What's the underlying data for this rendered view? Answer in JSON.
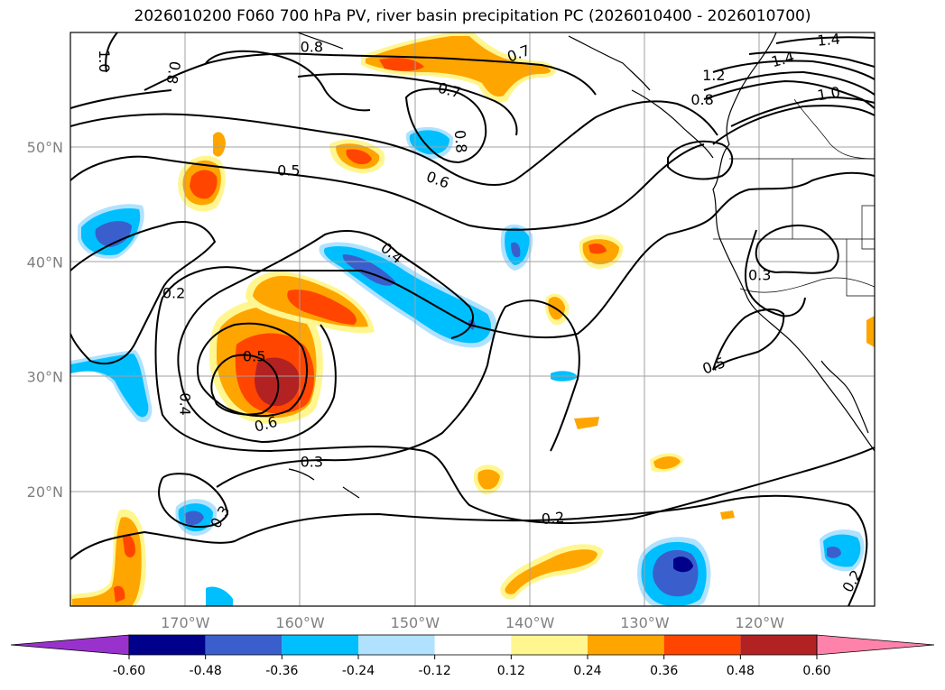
{
  "title": "2026010200 F060 700 hPa PV, river basin precipitation PC (2026010400 - 2026010700)",
  "axes": {
    "lat_labels": [
      {
        "text": "50°N",
        "lat": 50
      },
      {
        "text": "40°N",
        "lat": 40
      },
      {
        "text": "30°N",
        "lat": 30
      },
      {
        "text": "20°N",
        "lat": 20
      }
    ],
    "lon_labels": [
      {
        "text": "170°W",
        "lon": -170
      },
      {
        "text": "160°W",
        "lon": -160
      },
      {
        "text": "150°W",
        "lon": -150
      },
      {
        "text": "140°W",
        "lon": -140
      },
      {
        "text": "130°W",
        "lon": -130
      },
      {
        "text": "120°W",
        "lon": -120
      }
    ],
    "lon_range": [
      -180,
      -110
    ],
    "lat_range": [
      10,
      60
    ]
  },
  "contour_labels": [
    {
      "text": "1.0",
      "lon": -177,
      "lat": 57.5,
      "rot": 90
    },
    {
      "text": "0.8",
      "lon": -171,
      "lat": 56.5,
      "rot": 100
    },
    {
      "text": "0.8",
      "lon": -159,
      "lat": 58.8,
      "rot": 0
    },
    {
      "text": "0.7",
      "lon": -141,
      "lat": 58.2,
      "rot": -20
    },
    {
      "text": "0.7",
      "lon": -147,
      "lat": 55.0,
      "rot": 15
    },
    {
      "text": "0.8",
      "lon": -146,
      "lat": 50.5,
      "rot": 85
    },
    {
      "text": "0.6",
      "lon": -148,
      "lat": 47.2,
      "rot": 20
    },
    {
      "text": "0.5",
      "lon": -161,
      "lat": 48.0,
      "rot": 0
    },
    {
      "text": "0.4",
      "lon": -152,
      "lat": 40.8,
      "rot": 40
    },
    {
      "text": "0.2",
      "lon": -171,
      "lat": 37.3,
      "rot": 0
    },
    {
      "text": "0.5",
      "lon": -164,
      "lat": 31.8,
      "rot": 0
    },
    {
      "text": "0.4",
      "lon": -170,
      "lat": 27.6,
      "rot": 90
    },
    {
      "text": "0.6",
      "lon": -163,
      "lat": 25.9,
      "rot": -15
    },
    {
      "text": "0.3",
      "lon": -159,
      "lat": 22.6,
      "rot": 0
    },
    {
      "text": "0.3",
      "lon": -167,
      "lat": 17.8,
      "rot": -60
    },
    {
      "text": "0.2",
      "lon": -138,
      "lat": 17.7,
      "rot": -5
    },
    {
      "text": "0.2",
      "lon": -112,
      "lat": 12.2,
      "rot": -60
    },
    {
      "text": "0.3",
      "lon": -120,
      "lat": 38.9,
      "rot": 0
    },
    {
      "text": "0.5",
      "lon": -124,
      "lat": 31.0,
      "rot": -20
    },
    {
      "text": "0.8",
      "lon": -125,
      "lat": 54.2,
      "rot": 0
    },
    {
      "text": "1.2",
      "lon": -124,
      "lat": 56.3,
      "rot": 0
    },
    {
      "text": "1.4",
      "lon": -118,
      "lat": 57.7,
      "rot": -15
    },
    {
      "text": "1.4",
      "lon": -114,
      "lat": 59.4,
      "rot": -5
    },
    {
      "text": "1.0",
      "lon": -114,
      "lat": 54.7,
      "rot": -10
    }
  ],
  "colorbar": {
    "ticks": [
      "-0.60",
      "-0.48",
      "-0.36",
      "-0.24",
      "-0.12",
      "0.12",
      "0.24",
      "0.36",
      "0.48",
      "0.60"
    ],
    "colors": [
      "#9932cc",
      "#00008b",
      "#3a5fcd",
      "#00bfff",
      "#b0e2ff",
      "#ffffff",
      "#fff68f",
      "#ffa500",
      "#ff4500",
      "#b22222",
      "#ff82ab"
    ]
  },
  "fields": {
    "pv_contours": [
      0.2,
      0.3,
      0.4,
      0.5,
      0.6,
      0.7,
      0.8,
      1.0,
      1.2,
      1.4
    ],
    "precip_pc_levels": [
      -0.6,
      -0.48,
      -0.36,
      -0.24,
      -0.12,
      0.12,
      0.24,
      0.36,
      0.48,
      0.6
    ]
  }
}
